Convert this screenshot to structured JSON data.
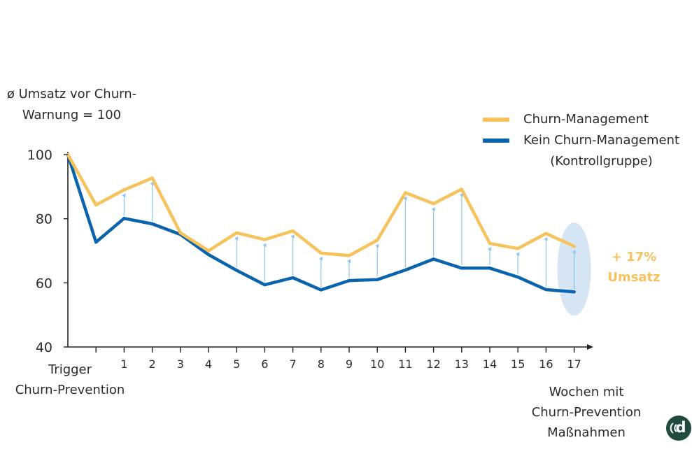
{
  "chart_data": {
    "type": "line",
    "ylabel": "ø Umsatz vor Churn-Warnung = 100",
    "ylabel_lines": [
      "ø Umsatz vor Churn-",
      "Warnung = 100"
    ],
    "xlabel_lines": [
      "Wochen mit",
      "Churn-Prevention",
      "Maßnahmen"
    ],
    "x_start_label_lines": [
      "Trigger",
      "Churn-Prevention"
    ],
    "x_ticks": [
      "",
      "",
      "1",
      "2",
      "3",
      "4",
      "5",
      "6",
      "7",
      "8",
      "9",
      "10",
      "11",
      "12",
      "13",
      "14",
      "15",
      "16",
      "17"
    ],
    "y_ticks": [
      100,
      80,
      60,
      40
    ],
    "ylim": [
      40,
      100
    ],
    "series": [
      {
        "name": "Churn-Management",
        "color": "#f6c25c",
        "values": [
          100,
          84.3,
          89,
          92.7,
          75.6,
          70,
          75.6,
          73.5,
          76.2,
          69.3,
          68.5,
          73.3,
          88.1,
          84.7,
          89.2,
          72.3,
          70.7,
          75.4,
          71.4
        ]
      },
      {
        "name": "Kein Churn-Management (Kontrollgruppe)",
        "name_lines": [
          "Kein Churn-Management",
          "(Kontrollgruppe)"
        ],
        "color": "#0a64ad",
        "values": [
          100,
          72.7,
          80.1,
          78.4,
          75.1,
          68.8,
          63.9,
          59.4,
          61.6,
          57.8,
          60.7,
          61,
          64,
          67.4,
          64.6,
          64.6,
          61.8,
          57.9,
          57.2
        ]
      }
    ],
    "arrow_color": "#8ec6ec",
    "highlight_color": "#c7dcef",
    "annotation_lines": [
      "+ 17%",
      "Umsatz"
    ],
    "legend_position": "top-right"
  }
}
